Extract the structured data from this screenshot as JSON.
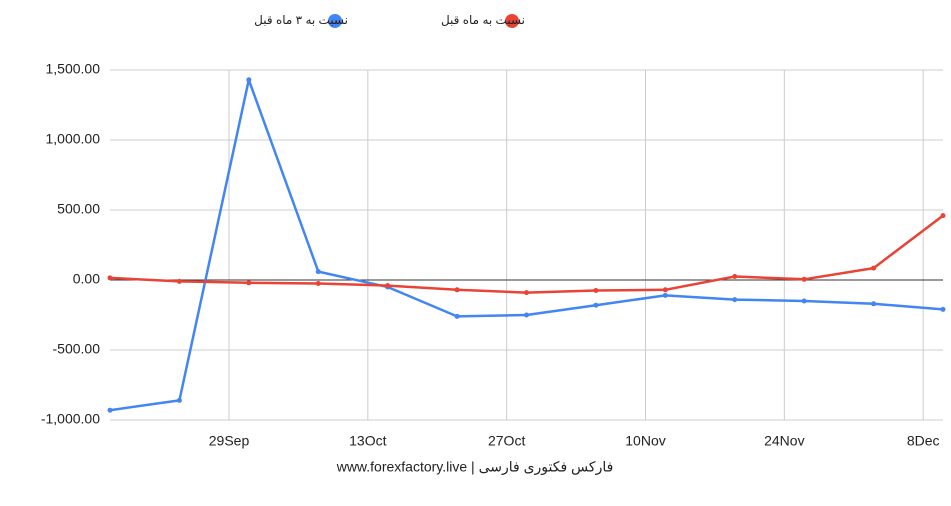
{
  "chart_data": {
    "type": "line",
    "footer": "www.forexfactory.live | فارکس فکتوری فارسی",
    "x": [
      "17Sep",
      "24Sep",
      "1Oct",
      "8Oct",
      "15Oct",
      "22Oct",
      "29Oct",
      "5Nov",
      "12Nov",
      "19Nov",
      "26Nov",
      "3Dec",
      "10Dec"
    ],
    "xlim": [
      "17Sep",
      "10Dec"
    ],
    "xticks": [
      "29Sep",
      "13Oct",
      "27Oct",
      "10Nov",
      "24Nov",
      "8Dec"
    ],
    "series": [
      {
        "name": "نسبت به ۳ ماه قبل",
        "color": "#4285f4",
        "values": [
          -930,
          -860,
          1430,
          60,
          -50,
          -260,
          -250,
          -180,
          -110,
          -140,
          -150,
          -170,
          -210
        ]
      },
      {
        "name": "نسبت به ماه قبل",
        "color": "#ea4335",
        "values": [
          15,
          -10,
          -20,
          -25,
          -40,
          -70,
          -90,
          -75,
          -70,
          25,
          5,
          85,
          460
        ]
      }
    ],
    "ylim": [
      -1000,
      1500
    ],
    "yticks": [
      {
        "value": -1000,
        "label": "-1,000.00"
      },
      {
        "value": -500,
        "label": "-500.00"
      },
      {
        "value": 0,
        "label": "0.00"
      },
      {
        "value": 500,
        "label": "500.00"
      },
      {
        "value": 1000,
        "label": "1,000.00"
      },
      {
        "value": 1500,
        "label": "1,500.00"
      }
    ],
    "grid": true,
    "legend": "top"
  }
}
